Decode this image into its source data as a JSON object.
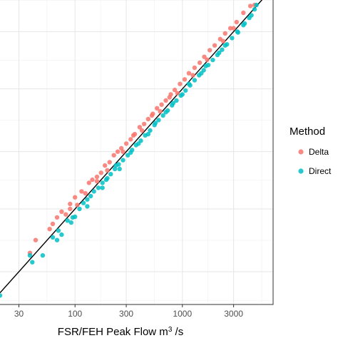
{
  "chart_data": {
    "type": "scatter",
    "title": "",
    "xlabel_main": "FSR/FEH Peak Flow m",
    "xlabel_sup": "3",
    "xlabel_tail": " /s",
    "ylabel": "",
    "x_scale": "log10",
    "y_scale": "log10",
    "xlim": [
      20,
      7000
    ],
    "ylim": [
      16,
      5500
    ],
    "x_ticks": [
      30,
      100,
      300,
      1000,
      3000
    ],
    "x_tick_labels": [
      "30",
      "100",
      "300",
      "1000",
      "3000"
    ],
    "grid": true,
    "reference_line": "y = x",
    "legend": {
      "title": "Method",
      "position": "right",
      "entries": [
        {
          "label": "Delta",
          "color": "#F8766D"
        },
        {
          "label": "Direct",
          "color": "#00BFC4"
        }
      ]
    },
    "series": [
      {
        "name": "Delta",
        "color": "#F8766D",
        "points": [
          [
            38,
            43
          ],
          [
            43,
            55
          ],
          [
            58,
            68
          ],
          [
            62,
            75
          ],
          [
            68,
            85
          ],
          [
            75,
            95
          ],
          [
            82,
            90
          ],
          [
            90,
            110
          ],
          [
            100,
            125
          ],
          [
            105,
            108
          ],
          [
            115,
            140
          ],
          [
            125,
            135
          ],
          [
            135,
            165
          ],
          [
            145,
            175
          ],
          [
            160,
            185
          ],
          [
            175,
            200
          ],
          [
            190,
            230
          ],
          [
            210,
            245
          ],
          [
            230,
            280
          ],
          [
            250,
            300
          ],
          [
            270,
            320
          ],
          [
            300,
            350
          ],
          [
            330,
            380
          ],
          [
            360,
            420
          ],
          [
            400,
            480
          ],
          [
            440,
            510
          ],
          [
            480,
            560
          ],
          [
            530,
            620
          ],
          [
            580,
            690
          ],
          [
            640,
            740
          ],
          [
            700,
            800
          ],
          [
            780,
            900
          ],
          [
            850,
            980
          ],
          [
            950,
            1100
          ],
          [
            1050,
            1200
          ],
          [
            1150,
            1350
          ],
          [
            1300,
            1500
          ],
          [
            1450,
            1650
          ],
          [
            1600,
            1850
          ],
          [
            1800,
            2100
          ],
          [
            2000,
            2300
          ],
          [
            2250,
            2600
          ],
          [
            2500,
            2900
          ],
          [
            2800,
            3200
          ],
          [
            3200,
            3600
          ],
          [
            3700,
            4300
          ],
          [
            4300,
            4900
          ],
          [
            4700,
            5000
          ],
          [
            90,
            100
          ],
          [
            160,
            170
          ],
          [
            200,
            210
          ],
          [
            280,
            300
          ],
          [
            420,
            450
          ],
          [
            620,
            650
          ],
          [
            900,
            920
          ],
          [
            1250,
            1300
          ],
          [
            1700,
            1750
          ],
          [
            2400,
            2500
          ],
          [
            3000,
            3200
          ],
          [
            350,
            410
          ],
          [
            520,
            600
          ],
          [
            760,
            850
          ]
        ]
      },
      {
        "name": "Direct",
        "color": "#00BFC4",
        "points": [
          [
            20,
            19
          ],
          [
            38,
            41
          ],
          [
            40,
            36
          ],
          [
            50,
            41
          ],
          [
            62,
            58
          ],
          [
            70,
            66
          ],
          [
            75,
            61
          ],
          [
            85,
            80
          ],
          [
            95,
            85
          ],
          [
            100,
            86
          ],
          [
            110,
            100
          ],
          [
            120,
            112
          ],
          [
            130,
            120
          ],
          [
            140,
            128
          ],
          [
            150,
            140
          ],
          [
            165,
            150
          ],
          [
            180,
            165
          ],
          [
            195,
            175
          ],
          [
            215,
            195
          ],
          [
            235,
            215
          ],
          [
            255,
            235
          ],
          [
            280,
            255
          ],
          [
            310,
            280
          ],
          [
            340,
            310
          ],
          [
            370,
            340
          ],
          [
            410,
            370
          ],
          [
            450,
            410
          ],
          [
            500,
            450
          ],
          [
            550,
            500
          ],
          [
            600,
            550
          ],
          [
            660,
            600
          ],
          [
            730,
            660
          ],
          [
            800,
            730
          ],
          [
            880,
            800
          ],
          [
            970,
            880
          ],
          [
            1070,
            970
          ],
          [
            1180,
            1070
          ],
          [
            1300,
            1180
          ],
          [
            1430,
            1300
          ],
          [
            1580,
            1430
          ],
          [
            1740,
            1580
          ],
          [
            1920,
            1740
          ],
          [
            2120,
            1920
          ],
          [
            2340,
            2120
          ],
          [
            2600,
            2350
          ],
          [
            2900,
            2650
          ],
          [
            3250,
            3000
          ],
          [
            3700,
            3400
          ],
          [
            4200,
            3900
          ],
          [
            4700,
            4600
          ],
          [
            4400,
            4100
          ],
          [
            4900,
            5000
          ],
          [
            130,
            105
          ],
          [
            200,
            180
          ],
          [
            260,
            215
          ],
          [
            330,
            295
          ],
          [
            480,
            420
          ],
          [
            700,
            640
          ],
          [
            1000,
            900
          ],
          [
            1500,
            1350
          ],
          [
            2200,
            2000
          ],
          [
            3300,
            2950
          ],
          [
            180,
            150
          ],
          [
            240,
            230
          ],
          [
            390,
            350
          ],
          [
            560,
            520
          ],
          [
            820,
            760
          ],
          [
            1150,
            1100
          ],
          [
            1650,
            1550
          ],
          [
            2500,
            2300
          ],
          [
            3800,
            3500
          ],
          [
            92,
            77
          ],
          [
            68,
            55
          ]
        ]
      }
    ]
  }
}
